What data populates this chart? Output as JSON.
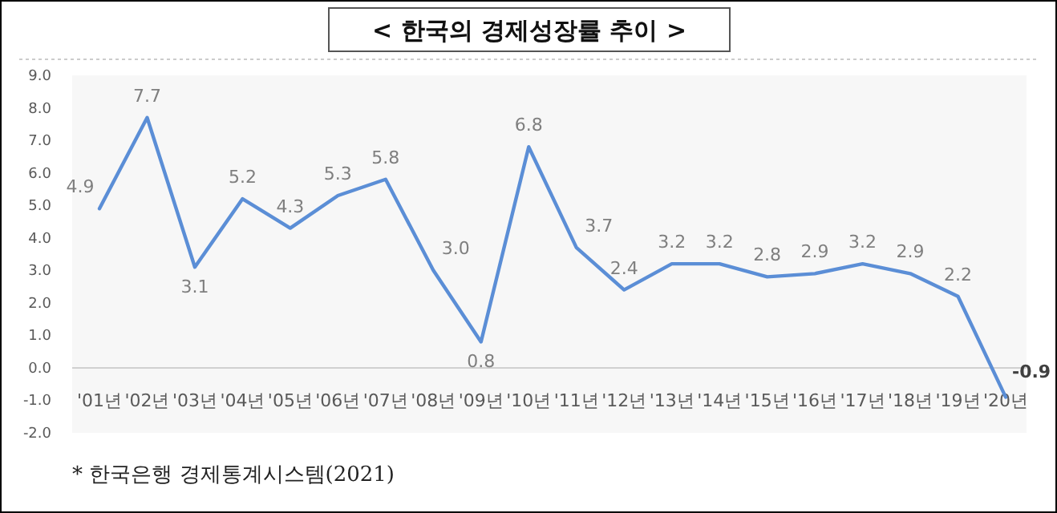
{
  "chart_data": {
    "type": "line",
    "title": "< 한국의 경제성장률 추이 >",
    "categories": [
      "'01년",
      "'02년",
      "'03년",
      "'04년",
      "'05년",
      "'06년",
      "'07년",
      "'08년",
      "'09년",
      "'10년",
      "'11년",
      "'12년",
      "'13년",
      "'14년",
      "'15년",
      "'16년",
      "'17년",
      "'18년",
      "'19년",
      "'20년"
    ],
    "series": [
      {
        "color": "#5b8ed6",
        "values": [
          4.9,
          7.7,
          3.1,
          5.2,
          4.3,
          5.3,
          5.8,
          3.0,
          0.8,
          6.8,
          3.7,
          2.4,
          3.2,
          3.2,
          2.8,
          2.9,
          3.2,
          2.9,
          2.2,
          -0.9
        ]
      }
    ],
    "ylim": [
      -2,
      9
    ],
    "yticks": [
      {
        "value": -2,
        "label": "-2.0"
      },
      {
        "value": -1,
        "label": "-1.0"
      },
      {
        "value": 0,
        "label": "0.0"
      },
      {
        "value": 1,
        "label": "1.0"
      },
      {
        "value": 2,
        "label": "2.0"
      },
      {
        "value": 3,
        "label": "3.0"
      },
      {
        "value": 4,
        "label": "4.0"
      },
      {
        "value": 5,
        "label": "5.0"
      },
      {
        "value": 6,
        "label": "6.0"
      },
      {
        "value": 7,
        "label": "7.0"
      },
      {
        "value": 8,
        "label": "8.0"
      },
      {
        "value": 9,
        "label": "9.0"
      }
    ],
    "value_labels": [
      "4.9",
      "7.7",
      "3.1",
      "5.2",
      "4.3",
      "5.3",
      "5.8",
      "3.0",
      "0.8",
      "6.8",
      "3.7",
      "2.4",
      "3.2",
      "3.2",
      "2.8",
      "2.9",
      "3.2",
      "2.9",
      "2.2",
      "-0.9"
    ],
    "grid": false,
    "marker": "none",
    "line_style": "solid",
    "annotations": [
      "* 한국은행 경제통계시스템(2021)"
    ]
  }
}
